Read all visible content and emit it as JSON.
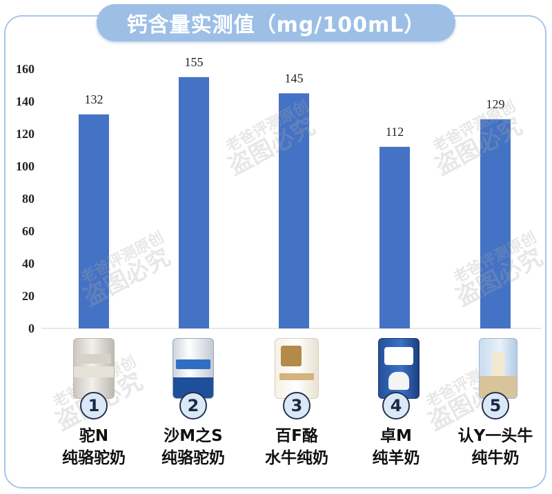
{
  "title": "钙含量实测值（mg/100mL）",
  "watermark": {
    "line1": "老爸评测原创",
    "line2": "盗图必究"
  },
  "colors": {
    "bar": "#4472c4",
    "title_pill": "#9dbfe6",
    "frame": "#a9c6e8"
  },
  "products": [
    {
      "number": "1",
      "brand": "驼N",
      "name": "纯骆驼奶"
    },
    {
      "number": "2",
      "brand": "沙M之S",
      "name": "纯骆驼奶"
    },
    {
      "number": "3",
      "brand": "百F酪",
      "name": "水牛纯奶"
    },
    {
      "number": "4",
      "brand": "卓M",
      "name": "纯羊奶"
    },
    {
      "number": "5",
      "brand": "认Y一头牛",
      "name": "纯牛奶"
    }
  ],
  "chart_data": {
    "type": "bar",
    "title": "钙含量实测值（mg/100mL）",
    "categories": [
      "驼N 纯骆驼奶",
      "沙M之S 纯骆驼奶",
      "百F酪 水牛纯奶",
      "卓M 纯羊奶",
      "认Y一头牛 纯牛奶"
    ],
    "values": [
      132,
      155,
      145,
      112,
      129
    ],
    "data_labels": [
      "132",
      "155",
      "145",
      "112",
      "129"
    ],
    "xlabel": "",
    "ylabel": "",
    "ylim": [
      0,
      160
    ],
    "yticks": [
      0,
      20,
      40,
      60,
      80,
      100,
      120,
      140,
      160
    ],
    "ytick_labels": [
      "0",
      "20",
      "40",
      "60",
      "80",
      "100",
      "120",
      "140",
      "160"
    ],
    "grid": false,
    "legend": "none"
  }
}
